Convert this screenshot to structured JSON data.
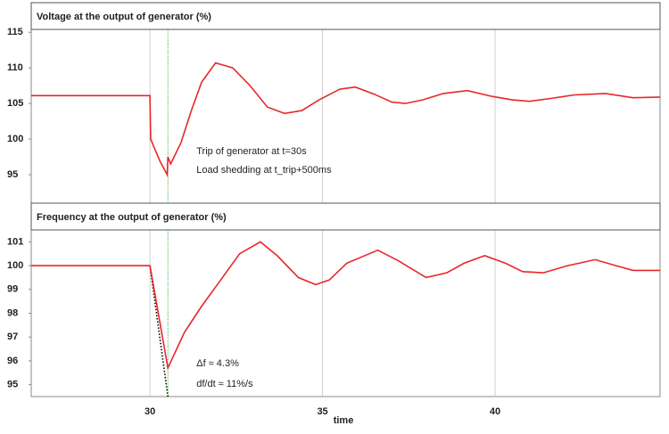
{
  "chart_data": [
    {
      "type": "line",
      "title": "Voltage at the output  of generator (%)",
      "x": [
        26.56,
        30,
        30.02,
        30.15,
        30.3,
        30.5,
        30.52,
        30.6,
        30.9,
        31.2,
        31.5,
        31.9,
        32.4,
        32.9,
        33.4,
        33.9,
        34.4,
        34.9,
        35.5,
        35.95,
        36.5,
        37.0,
        37.4,
        37.9,
        38.5,
        39.2,
        39.9,
        40.5,
        41.0,
        41.6,
        42.3,
        43.2,
        44.0,
        44.78
      ],
      "series": [
        {
          "color": "#e8262b",
          "values": [
            106.1,
            106.1,
            100,
            98.5,
            96.8,
            95.0,
            97.5,
            96.5,
            99.5,
            104,
            108,
            110.7,
            110,
            107.5,
            104.5,
            103.6,
            104,
            105.5,
            107,
            107.3,
            106.3,
            105.2,
            105,
            105.5,
            106.4,
            106.8,
            106,
            105.5,
            105.3,
            105.7,
            106.2,
            106.4,
            105.8,
            105.9
          ]
        }
      ],
      "xlim": [
        26.56,
        44.78
      ],
      "xticks": [
        30,
        35,
        40
      ],
      "xtick_labels": false,
      "ylim": [
        91,
        115.4
      ],
      "yticks": [
        95,
        100,
        105,
        110,
        115
      ],
      "grid": "x",
      "vline": {
        "x": 30.52,
        "color": "#22a022"
      },
      "annotations": [
        "Trip of generator at t=30s",
        "Load shedding at t_trip+500ms"
      ],
      "annotation_color": "#22a022"
    },
    {
      "type": "line",
      "title": "Frequency at the output  of generator (%)",
      "x": [
        26.56,
        30,
        30.52,
        31.0,
        31.5,
        32.0,
        32.6,
        33.2,
        33.7,
        34.3,
        34.8,
        35.2,
        35.7,
        36.6,
        37.2,
        38.0,
        38.6,
        39.1,
        39.7,
        40.3,
        40.8,
        41.4,
        42.1,
        42.9,
        43.5,
        44.0,
        44.78
      ],
      "series": [
        {
          "color": "#e8262b",
          "values": [
            100,
            100,
            95.7,
            97.2,
            98.3,
            99.3,
            100.5,
            101,
            100.4,
            99.5,
            99.2,
            99.4,
            100.1,
            100.65,
            100.2,
            99.5,
            99.7,
            100.1,
            100.42,
            100.1,
            99.75,
            99.7,
            100.0,
            100.25,
            100.0,
            99.8,
            99.8
          ]
        }
      ],
      "xlim": [
        26.56,
        44.78
      ],
      "xticks": [
        30,
        35,
        40
      ],
      "xtick_labels": true,
      "xlabel": "time",
      "ylim": [
        94.5,
        101.5
      ],
      "yticks": [
        95,
        96,
        97,
        98,
        99,
        100,
        101
      ],
      "grid": "x",
      "vline": {
        "x": 30.52,
        "color": "#22a022"
      },
      "tangent": {
        "x": [
          30,
          30.52
        ],
        "y": [
          100,
          94.5
        ],
        "color": "#000000"
      },
      "annotations": [
        "Δf ≈ 4.3%",
        "df/dt ≈ 11%/s"
      ],
      "annotation_color": "#222222"
    }
  ]
}
